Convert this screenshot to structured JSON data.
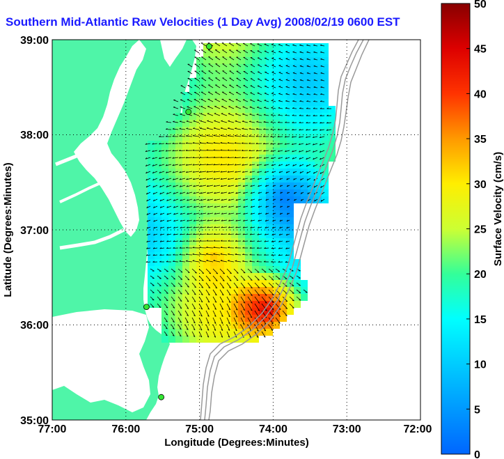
{
  "title": "Southern Mid-Atlantic Raw Velocities (1 Day Avg) 2008/02/19 0600 EST",
  "xlabel": "Longitude (Degrees:Minutes)",
  "ylabel": "Latitude (Degrees:Minutes)",
  "x_ticks": [
    "77:00",
    "76:00",
    "75:00",
    "74:00",
    "73:00",
    "72:00"
  ],
  "y_ticks": [
    "39:00",
    "38:00",
    "37:00",
    "36:00",
    "35:00"
  ],
  "colorbar": {
    "label": "Surface Velocity (cm/s)",
    "ticks": [
      "50",
      "45",
      "40",
      "35",
      "30",
      "25",
      "20",
      "15",
      "10",
      "5",
      "0"
    ],
    "range": [
      0,
      50
    ]
  },
  "colors": {
    "land": "#4ff5a8",
    "water": "#ffffff",
    "title": "#1a1aff",
    "station": "#33e633",
    "bathymetry": "#999999"
  },
  "stations": [
    {
      "name": "station-north",
      "lon": -74.87,
      "lat": 38.93
    },
    {
      "name": "station-cape-henlopen",
      "lon": -75.15,
      "lat": 38.24
    },
    {
      "name": "station-virginia",
      "lon": -75.72,
      "lat": 36.19
    },
    {
      "name": "station-hatteras",
      "lon": -75.52,
      "lat": 35.24
    }
  ],
  "grid": "dotted"
}
